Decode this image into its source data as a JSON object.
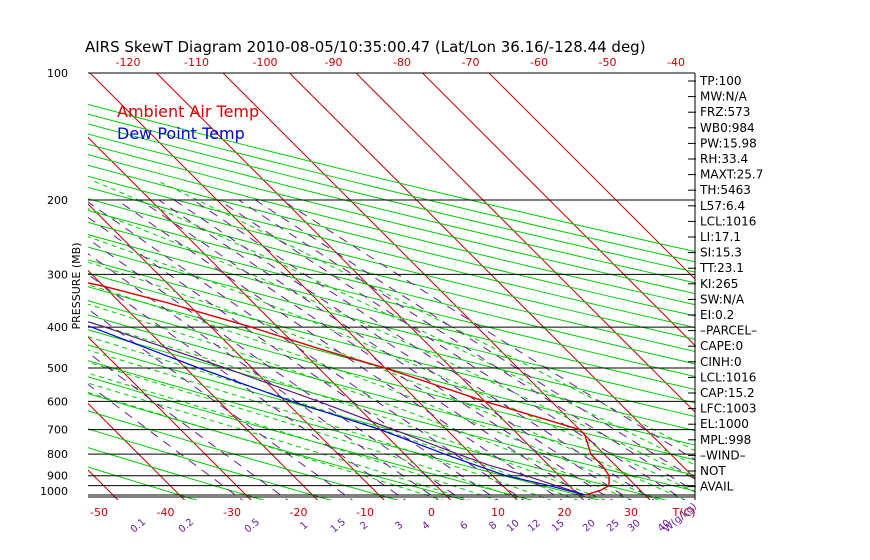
{
  "title": "AIRS SkewT Diagram 2010-08-05/10:35:00.47 (Lat/Lon 36.16/-128.44 deg)",
  "colors": {
    "isotherm": "#cc0000",
    "dry_adiabat": "#00cc00",
    "moist_adiabat": "#00cc00",
    "mixing_ratio": "#6a1b9a",
    "ambient": "#dd0000",
    "dewpoint": "#0000dd",
    "parcel": "#5a1f7a",
    "grid": "#000000"
  },
  "chart_data": {
    "type": "skewt",
    "title": "AIRS SkewT Diagram 2010-08-05/10:35:00.47 (Lat/Lon 36.16/-128.44 deg)",
    "ylabel": "PRESSURE (MB)",
    "x_unit_label": "T(C)",
    "mixing_unit_label": "W(g/kg)",
    "pressure_ticks": [
      100,
      200,
      300,
      400,
      500,
      600,
      700,
      800,
      900,
      1000
    ],
    "bottom_temp_ticks": [
      "-50",
      "-40",
      "-30",
      "-20",
      "-10",
      "0",
      "10",
      "20",
      "30"
    ],
    "top_temp_ticks": [
      "-120",
      "-110",
      "-100",
      "-90",
      "-80",
      "-70",
      "-60",
      "-50",
      "-40"
    ],
    "mixing_ratio_labels": [
      "0.1",
      "0.2",
      "0.5",
      "1",
      "1.5",
      "2",
      "3",
      "4",
      "6",
      "8",
      "10",
      "12",
      "15",
      "20",
      "25",
      "30",
      "40"
    ],
    "legend": [
      {
        "label": "Ambient Air Temp",
        "color": "#dd0000"
      },
      {
        "label": "Dew Point Temp",
        "color": "#0000dd"
      }
    ],
    "ambient_temp": [
      {
        "p": 1000,
        "t": 11
      },
      {
        "p": 975,
        "t": 14
      },
      {
        "p": 950,
        "t": 16
      },
      {
        "p": 900,
        "t": 17.5
      },
      {
        "p": 850,
        "t": 18
      },
      {
        "p": 800,
        "t": 18
      },
      {
        "p": 720,
        "t": 20
      },
      {
        "p": 700,
        "t": 20
      },
      {
        "p": 600,
        "t": 10
      },
      {
        "p": 500,
        "t": 0
      },
      {
        "p": 450,
        "t": -7
      },
      {
        "p": 400,
        "t": -14
      },
      {
        "p": 350,
        "t": -23
      },
      {
        "p": 320,
        "t": -30
      },
      {
        "p": 300,
        "t": -37
      },
      {
        "p": 250,
        "t": -49
      },
      {
        "p": 200,
        "t": -60
      },
      {
        "p": 175,
        "t": -63
      },
      {
        "p": 150,
        "t": -63
      },
      {
        "p": 125,
        "t": -61
      },
      {
        "p": 112,
        "t": -59
      },
      {
        "p": 100,
        "t": -58
      }
    ],
    "dewpoint_temp": [
      {
        "p": 1000,
        "t": 11
      },
      {
        "p": 975,
        "t": 9
      },
      {
        "p": 950,
        "t": 7
      },
      {
        "p": 900,
        "t": 2
      },
      {
        "p": 850,
        "t": -1
      },
      {
        "p": 800,
        "t": -4
      },
      {
        "p": 700,
        "t": -10
      },
      {
        "p": 600,
        "t": -19
      },
      {
        "p": 500,
        "t": -28
      },
      {
        "p": 400,
        "t": -38
      },
      {
        "p": 300,
        "t": -54
      },
      {
        "p": 250,
        "t": -62
      },
      {
        "p": 200,
        "t": -70
      },
      {
        "p": 150,
        "t": -80
      },
      {
        "p": 125,
        "t": -84
      },
      {
        "p": 100,
        "t": -86
      }
    ],
    "parcel_temp": [
      {
        "p": 1000,
        "t": 11
      },
      {
        "p": 950,
        "t": 8
      },
      {
        "p": 900,
        "t": 5
      },
      {
        "p": 850,
        "t": 1
      },
      {
        "p": 800,
        "t": -2
      },
      {
        "p": 700,
        "t": -8
      },
      {
        "p": 600,
        "t": -15
      },
      {
        "p": 500,
        "t": -24
      },
      {
        "p": 400,
        "t": -36
      },
      {
        "p": 300,
        "t": -53
      },
      {
        "p": 250,
        "t": -64
      },
      {
        "p": 200,
        "t": -76
      },
      {
        "p": 150,
        "t": -92
      },
      {
        "p": 100,
        "t": -115
      }
    ],
    "indices": [
      "TP:100",
      "MW:N/A",
      "FRZ:573",
      "WB0:984",
      "PW:15.98",
      "RH:33.4",
      "MAXT:25.7",
      "TH:5463",
      "L57:6.4",
      "LCL:1016",
      "LI:17.1",
      "SI:15.3",
      "TT:23.1",
      "KI:265",
      "SW:N/A",
      "EI:0.2",
      "–PARCEL–",
      "CAPE:0",
      "CINH:0",
      "LCL:1016",
      "CAP:15.2",
      "LFC:1003",
      "EL:1000",
      "MPL:998",
      "–WIND–",
      "NOT",
      "AVAIL"
    ]
  }
}
